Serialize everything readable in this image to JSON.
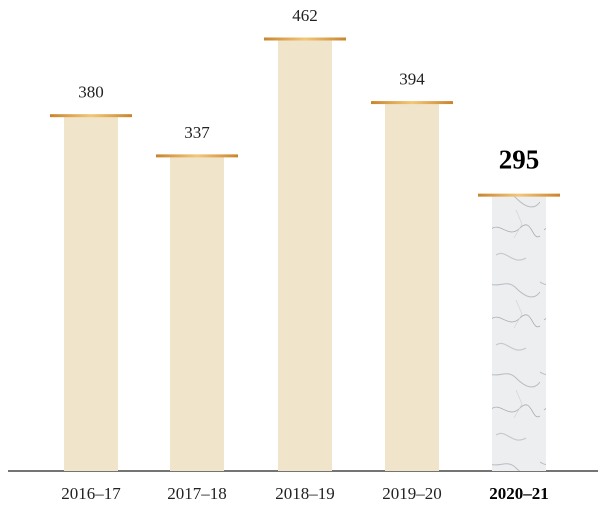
{
  "chart_data": {
    "type": "bar",
    "categories": [
      "2016–17",
      "2017–18",
      "2018–19",
      "2019–20",
      "2020–21"
    ],
    "values": [
      380,
      337,
      462,
      394,
      295
    ],
    "color": "#f0e4cb"
  }
}
